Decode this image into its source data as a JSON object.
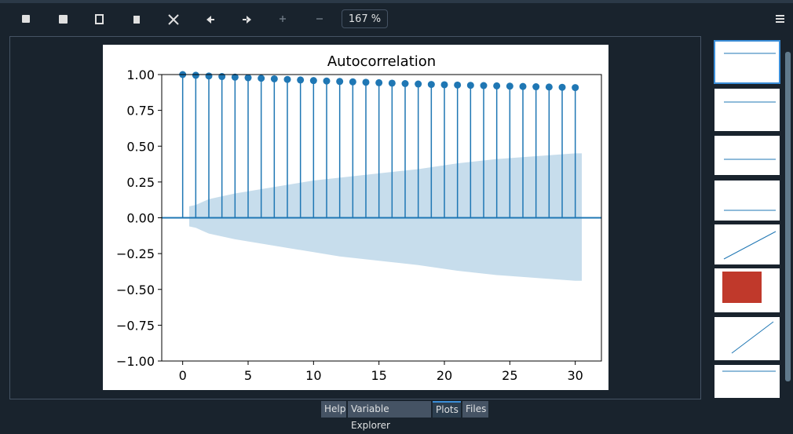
{
  "toolbar": {
    "zoom": "167 %"
  },
  "tabs": [
    "Help",
    "Variable Explorer",
    "Plots",
    "Files"
  ],
  "chart_data": {
    "type": "stem",
    "title": "Autocorrelation",
    "color": "#1f77b4",
    "x": [
      0,
      1,
      2,
      3,
      4,
      5,
      6,
      7,
      8,
      9,
      10,
      11,
      12,
      13,
      14,
      15,
      16,
      17,
      18,
      19,
      20,
      21,
      22,
      23,
      24,
      25,
      26,
      27,
      28,
      29,
      30
    ],
    "values": [
      1.0,
      0.995,
      0.99,
      0.986,
      0.982,
      0.978,
      0.974,
      0.97,
      0.966,
      0.962,
      0.958,
      0.955,
      0.952,
      0.949,
      0.946,
      0.943,
      0.94,
      0.937,
      0.934,
      0.931,
      0.929,
      0.927,
      0.925,
      0.923,
      0.921,
      0.919,
      0.917,
      0.915,
      0.913,
      0.911,
      0.909
    ],
    "band": {
      "x": [
        0.5,
        1,
        2,
        4,
        6,
        8,
        10,
        12,
        15,
        18,
        21,
        24,
        27,
        30,
        30.5
      ],
      "upper": [
        0.08,
        0.09,
        0.13,
        0.17,
        0.2,
        0.23,
        0.26,
        0.28,
        0.31,
        0.34,
        0.38,
        0.41,
        0.43,
        0.45,
        0.45
      ],
      "lower": [
        -0.06,
        -0.07,
        -0.11,
        -0.15,
        -0.18,
        -0.21,
        -0.24,
        -0.27,
        -0.3,
        -0.33,
        -0.37,
        -0.4,
        -0.42,
        -0.44,
        -0.44
      ]
    },
    "xlim": [
      -1.6,
      32
    ],
    "ylim": [
      -1,
      1
    ],
    "xticks": [
      0,
      5,
      10,
      15,
      20,
      25,
      30
    ],
    "yticks": [
      {
        "value": 1,
        "label": "1.00"
      },
      {
        "value": 0.75,
        "label": "0.75"
      },
      {
        "value": 0.5,
        "label": "0.50"
      },
      {
        "value": 0.25,
        "label": "0.25"
      },
      {
        "value": 0,
        "label": "0.00"
      },
      {
        "value": -0.25,
        "label": "−0.25"
      },
      {
        "value": -0.5,
        "label": "−0.50"
      },
      {
        "value": -0.75,
        "label": "−0.75"
      },
      {
        "value": -1,
        "label": "−1.00"
      }
    ]
  }
}
